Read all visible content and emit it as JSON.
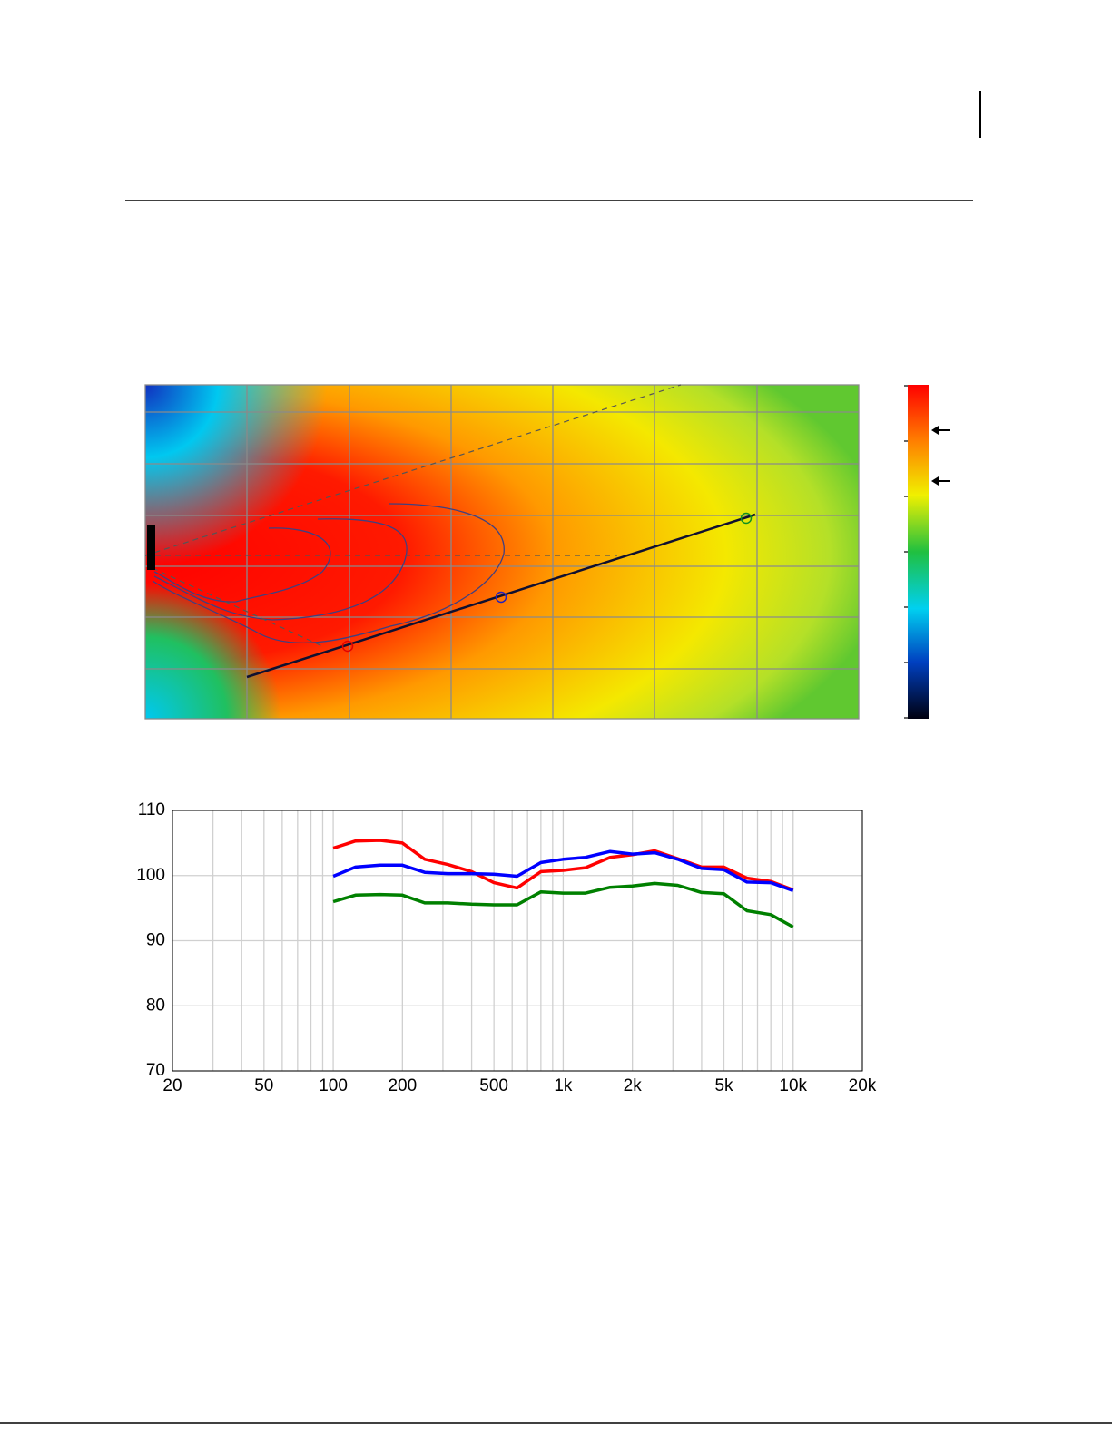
{
  "chart_data": {
    "type": "line",
    "x": [
      100,
      125,
      160,
      200,
      250,
      315,
      400,
      500,
      630,
      800,
      1000,
      1250,
      1600,
      2000,
      2500,
      3150,
      4000,
      5000,
      6300,
      8000,
      10000
    ],
    "series": [
      {
        "color": "#ff0000",
        "values": [
          104.2,
          105.3,
          105.4,
          105.0,
          102.5,
          101.7,
          100.6,
          98.9,
          98.1,
          100.6,
          100.8,
          101.2,
          102.8,
          103.2,
          103.8,
          102.6,
          101.3,
          101.3,
          99.6,
          99.1,
          97.8
        ]
      },
      {
        "color": "#0000ff",
        "values": [
          99.9,
          101.3,
          101.6,
          101.6,
          100.5,
          100.3,
          100.3,
          100.2,
          99.9,
          102.0,
          102.5,
          102.8,
          103.7,
          103.3,
          103.5,
          102.5,
          101.1,
          100.9,
          99.0,
          98.9,
          97.7
        ]
      },
      {
        "color": "#008000",
        "values": [
          96.0,
          97.0,
          97.1,
          97.0,
          95.8,
          95.8,
          95.6,
          95.5,
          95.5,
          97.5,
          97.3,
          97.3,
          98.2,
          98.4,
          98.8,
          98.5,
          97.4,
          97.2,
          94.6,
          94.0,
          92.1
        ]
      }
    ],
    "xscale": "log",
    "xlim": [
      20,
      20000
    ],
    "xticks": [
      20,
      50,
      100,
      200,
      500,
      {
        "value": 1000,
        "label": "1k"
      },
      {
        "value": 2000,
        "label": "2k"
      },
      {
        "value": 5000,
        "label": "5k"
      },
      {
        "value": 10000,
        "label": "10k"
      },
      {
        "value": 20000,
        "label": "20k"
      }
    ],
    "xgrid": [
      30,
      40,
      60,
      70,
      80,
      90,
      300,
      400,
      600,
      700,
      800,
      900,
      3000,
      4000,
      6000,
      7000,
      8000,
      9000
    ],
    "ylim": [
      70,
      110
    ],
    "yticks": [
      70,
      80,
      90,
      100,
      110
    ],
    "grid": true
  }
}
